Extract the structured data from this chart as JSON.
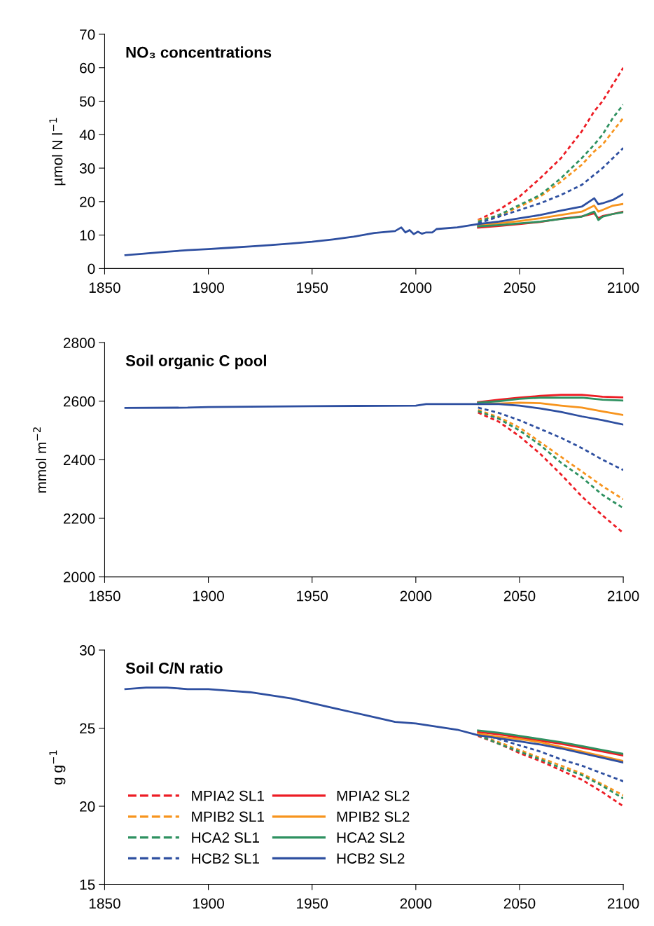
{
  "chart_data": [
    {
      "type": "line",
      "title": "NO₃ concentrations",
      "ylabel": "µmol N l$^{−1}$",
      "xlim": [
        1850,
        2100
      ],
      "xticks": [
        1850,
        1900,
        1950,
        2000,
        2050,
        2100
      ],
      "ylim": [
        0,
        70
      ],
      "yticks": [
        0,
        10,
        20,
        30,
        40,
        50,
        60,
        70
      ],
      "grid": false,
      "legend": false,
      "x": [
        1860,
        1870,
        1880,
        1890,
        1900,
        1910,
        1920,
        1930,
        1940,
        1950,
        1960,
        1970,
        1980,
        1990,
        1993,
        1995,
        1997,
        1999,
        2001,
        2003,
        2005,
        2008,
        2010,
        2020,
        2030,
        2040,
        2050,
        2060,
        2070,
        2080,
        2086,
        2088,
        2090,
        2095,
        2100
      ],
      "series": [
        {
          "color": "#ed1c24",
          "line_style": "dashed",
          "values": [
            null,
            null,
            null,
            null,
            null,
            null,
            null,
            null,
            null,
            null,
            null,
            null,
            null,
            null,
            null,
            null,
            null,
            null,
            null,
            null,
            null,
            null,
            null,
            null,
            14.5,
            17.5,
            21.5,
            27,
            33,
            41,
            47,
            48.5,
            50,
            55,
            60
          ]
        },
        {
          "color": "#f7941d",
          "line_style": "dashed",
          "values": [
            null,
            null,
            null,
            null,
            null,
            null,
            null,
            null,
            null,
            null,
            null,
            null,
            null,
            null,
            null,
            null,
            null,
            null,
            null,
            null,
            null,
            null,
            null,
            null,
            14.4,
            15.8,
            18.5,
            21.5,
            26,
            31,
            35,
            36,
            37,
            41,
            45
          ]
        },
        {
          "color": "#2e9160",
          "line_style": "dashed",
          "values": [
            null,
            null,
            null,
            null,
            null,
            null,
            null,
            null,
            null,
            null,
            null,
            null,
            null,
            null,
            null,
            null,
            null,
            null,
            null,
            null,
            null,
            null,
            null,
            null,
            14,
            16,
            19,
            22,
            27,
            33,
            37,
            38.5,
            40,
            45,
            49
          ]
        },
        {
          "color": "#2e4fa0",
          "line_style": "dashed",
          "values": [
            null,
            null,
            null,
            null,
            null,
            null,
            null,
            null,
            null,
            null,
            null,
            null,
            null,
            null,
            null,
            null,
            null,
            null,
            null,
            null,
            null,
            null,
            null,
            null,
            13.5,
            15.5,
            17.5,
            19.5,
            22,
            25,
            28,
            29,
            30,
            33,
            36
          ]
        },
        {
          "color": "#ed1c24",
          "line_style": "solid",
          "values": [
            null,
            null,
            null,
            null,
            null,
            null,
            null,
            null,
            null,
            null,
            null,
            null,
            null,
            null,
            null,
            null,
            null,
            null,
            null,
            null,
            null,
            null,
            null,
            null,
            12.2,
            12.7,
            13.3,
            13.9,
            14.9,
            15.6,
            16.5,
            15,
            15.7,
            16.3,
            17
          ]
        },
        {
          "color": "#f7941d",
          "line_style": "solid",
          "values": [
            null,
            null,
            null,
            null,
            null,
            null,
            null,
            null,
            null,
            null,
            null,
            null,
            null,
            null,
            null,
            null,
            null,
            null,
            null,
            null,
            null,
            null,
            null,
            null,
            12.9,
            13.5,
            14.2,
            15,
            16,
            17,
            18.8,
            17,
            17.5,
            18.8,
            19.3
          ]
        },
        {
          "color": "#2e9160",
          "line_style": "solid",
          "values": [
            null,
            null,
            null,
            null,
            null,
            null,
            null,
            null,
            null,
            null,
            null,
            null,
            null,
            null,
            null,
            null,
            null,
            null,
            null,
            null,
            null,
            null,
            null,
            null,
            12.6,
            13,
            13.5,
            14,
            14.8,
            15.5,
            17,
            14.5,
            15.5,
            16.3,
            16.8
          ]
        },
        {
          "color": "#2e4fa0",
          "line_style": "solid",
          "values": [
            4,
            4.5,
            5,
            5.5,
            5.8,
            6.2,
            6.6,
            7,
            7.5,
            8,
            8.7,
            9.5,
            10.6,
            11.2,
            12.3,
            10.8,
            11.5,
            10.3,
            11,
            10.4,
            10.8,
            10.8,
            11.8,
            12.3,
            13.3,
            14,
            15,
            16,
            17.3,
            18.5,
            21,
            19.2,
            19.5,
            20.5,
            22.3
          ]
        }
      ]
    },
    {
      "type": "line",
      "title": "Soil organic C pool",
      "ylabel": "mmol m$^{−2}$",
      "xlim": [
        1850,
        2100
      ],
      "xticks": [
        1850,
        1900,
        1950,
        2000,
        2050,
        2100
      ],
      "ylim": [
        2000,
        2800
      ],
      "yticks": [
        2000,
        2200,
        2400,
        2600,
        2800
      ],
      "grid": false,
      "legend": false,
      "x": [
        1860,
        1890,
        1900,
        1950,
        2000,
        2005,
        2020,
        2030,
        2040,
        2050,
        2060,
        2070,
        2080,
        2090,
        2100
      ],
      "series": [
        {
          "color": "#ed1c24",
          "line_style": "dashed",
          "values": [
            null,
            null,
            null,
            null,
            null,
            null,
            null,
            2561,
            2530,
            2480,
            2420,
            2350,
            2275,
            2210,
            2150
          ]
        },
        {
          "color": "#f7941d",
          "line_style": "dashed",
          "values": [
            null,
            null,
            null,
            null,
            null,
            null,
            null,
            2570,
            2545,
            2510,
            2460,
            2410,
            2360,
            2310,
            2265
          ]
        },
        {
          "color": "#2e9160",
          "line_style": "dashed",
          "values": [
            null,
            null,
            null,
            null,
            null,
            null,
            null,
            2566,
            2540,
            2500,
            2450,
            2390,
            2340,
            2280,
            2235
          ]
        },
        {
          "color": "#2e4fa0",
          "line_style": "dashed",
          "values": [
            null,
            null,
            null,
            null,
            null,
            null,
            null,
            2578,
            2560,
            2535,
            2505,
            2475,
            2440,
            2400,
            2365
          ]
        },
        {
          "color": "#ed1c24",
          "line_style": "solid",
          "values": [
            null,
            null,
            null,
            null,
            null,
            null,
            null,
            2597,
            2605,
            2612,
            2618,
            2622,
            2622,
            2615,
            2613
          ]
        },
        {
          "color": "#f7941d",
          "line_style": "solid",
          "values": [
            null,
            null,
            null,
            null,
            null,
            null,
            null,
            2590,
            2592,
            2595,
            2593,
            2585,
            2578,
            2565,
            2553
          ]
        },
        {
          "color": "#2e9160",
          "line_style": "solid",
          "values": [
            null,
            null,
            null,
            null,
            null,
            null,
            null,
            2595,
            2600,
            2608,
            2612,
            2612,
            2612,
            2605,
            2602
          ]
        },
        {
          "color": "#2e4fa0",
          "line_style": "solid",
          "values": [
            2577,
            2578,
            2580,
            2583,
            2585,
            2590,
            2590,
            2590,
            2590,
            2585,
            2575,
            2563,
            2548,
            2535,
            2520
          ]
        }
      ]
    },
    {
      "type": "line",
      "title": "Soil C/N ratio",
      "ylabel": "g g$^{−1}$",
      "xlim": [
        1850,
        2100
      ],
      "xticks": [
        1850,
        1900,
        1950,
        2000,
        2050,
        2100
      ],
      "ylim": [
        15,
        30
      ],
      "yticks": [
        15,
        20,
        25,
        30
      ],
      "grid": false,
      "legend": "bottom left",
      "x": [
        1860,
        1870,
        1880,
        1890,
        1900,
        1910,
        1920,
        1930,
        1940,
        1950,
        1960,
        1970,
        1980,
        1990,
        2000,
        2010,
        2020,
        2030,
        2040,
        2050,
        2060,
        2070,
        2080,
        2090,
        2100
      ],
      "series": [
        {
          "name": "MPIA2 SL1",
          "color": "#ed1c24",
          "line_style": "dashed",
          "values": [
            null,
            null,
            null,
            null,
            null,
            null,
            null,
            null,
            null,
            null,
            null,
            null,
            null,
            null,
            null,
            null,
            null,
            24.5,
            24.0,
            23.4,
            22.9,
            22.3,
            21.7,
            20.9,
            20.0
          ]
        },
        {
          "name": "MPIB2 SL1",
          "color": "#f7941d",
          "line_style": "dashed",
          "values": [
            null,
            null,
            null,
            null,
            null,
            null,
            null,
            null,
            null,
            null,
            null,
            null,
            null,
            null,
            null,
            null,
            null,
            24.6,
            24.1,
            23.6,
            23.1,
            22.6,
            22.1,
            21.4,
            20.7
          ]
        },
        {
          "name": "HCA2 SL1",
          "color": "#2e9160",
          "line_style": "dashed",
          "values": [
            null,
            null,
            null,
            null,
            null,
            null,
            null,
            null,
            null,
            null,
            null,
            null,
            null,
            null,
            null,
            null,
            null,
            24.55,
            24.0,
            23.5,
            23.0,
            22.45,
            22.0,
            21.3,
            20.5
          ]
        },
        {
          "name": "HCB2 SL1",
          "color": "#2e4fa0",
          "line_style": "dashed",
          "values": [
            null,
            null,
            null,
            null,
            null,
            null,
            null,
            null,
            null,
            null,
            null,
            null,
            null,
            null,
            null,
            null,
            null,
            24.7,
            24.3,
            23.9,
            23.5,
            23.0,
            22.6,
            22.1,
            21.6
          ]
        },
        {
          "name": "MPIA2 SL2",
          "color": "#ed1c24",
          "line_style": "solid",
          "values": [
            null,
            null,
            null,
            null,
            null,
            null,
            null,
            null,
            null,
            null,
            null,
            null,
            null,
            null,
            null,
            null,
            null,
            24.75,
            24.6,
            24.4,
            24.2,
            24.0,
            23.75,
            23.5,
            23.25
          ]
        },
        {
          "name": "MPIB2 SL2",
          "color": "#f7941d",
          "line_style": "solid",
          "values": [
            null,
            null,
            null,
            null,
            null,
            null,
            null,
            null,
            null,
            null,
            null,
            null,
            null,
            null,
            null,
            null,
            null,
            24.65,
            24.45,
            24.3,
            24.1,
            23.8,
            23.5,
            23.2,
            22.9
          ]
        },
        {
          "name": "HCA2 SL2",
          "color": "#2e9160",
          "line_style": "solid",
          "values": [
            null,
            null,
            null,
            null,
            null,
            null,
            null,
            null,
            null,
            null,
            null,
            null,
            null,
            null,
            null,
            null,
            null,
            24.85,
            24.7,
            24.5,
            24.3,
            24.1,
            23.85,
            23.6,
            23.35
          ]
        },
        {
          "name": "HCB2 SL2",
          "color": "#2e4fa0",
          "line_style": "solid",
          "values": [
            27.5,
            27.6,
            27.6,
            27.5,
            27.5,
            27.4,
            27.3,
            27.1,
            26.9,
            26.6,
            26.3,
            26.0,
            25.7,
            25.4,
            25.3,
            25.1,
            24.9,
            24.55,
            24.35,
            24.15,
            23.95,
            23.7,
            23.4,
            23.1,
            22.8
          ]
        }
      ]
    }
  ]
}
